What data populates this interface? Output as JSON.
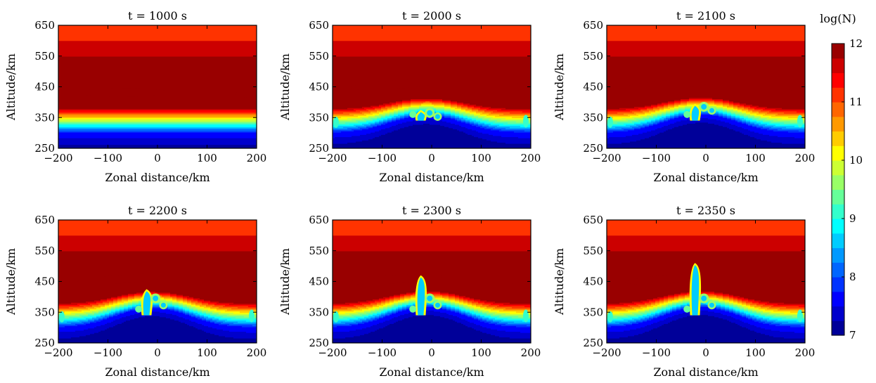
{
  "colorbar": {
    "label": "log(N)",
    "min": 7,
    "max": 12,
    "ticks": [
      7,
      8,
      9,
      10,
      11,
      12
    ],
    "colormap": "jet",
    "levels": 20
  },
  "chart_data": [
    {
      "type": "heatmap",
      "title": "t = 1000 s",
      "xlabel": "Zonal distance/km",
      "ylabel": "Altitude/km",
      "xlim": [
        -200,
        200
      ],
      "ylim": [
        250,
        650
      ],
      "xticks": [
        "−200",
        "−100",
        "0",
        "100",
        "200"
      ],
      "yticks": [
        "250",
        "350",
        "450",
        "550",
        "650"
      ],
      "bump_height_km": 0,
      "plume_top_km": 0
    },
    {
      "type": "heatmap",
      "title": "t = 2000 s",
      "xlabel": "Zonal distance/km",
      "ylabel": "Altitude/km",
      "xlim": [
        -200,
        200
      ],
      "ylim": [
        250,
        650
      ],
      "xticks": [
        "−200",
        "−100",
        "0",
        "100",
        "200"
      ],
      "yticks": [
        "250",
        "350",
        "450",
        "550",
        "650"
      ],
      "bump_height_km": 55,
      "plume_top_km": 375
    },
    {
      "type": "heatmap",
      "title": "t = 2100 s",
      "xlabel": "Zonal distance/km",
      "ylabel": "Altitude/km",
      "xlim": [
        -200,
        200
      ],
      "ylim": [
        250,
        650
      ],
      "xticks": [
        "−200",
        "−100",
        "0",
        "100",
        "200"
      ],
      "yticks": [
        "250",
        "350",
        "450",
        "550",
        "650"
      ],
      "bump_height_km": 60,
      "plume_top_km": 395
    },
    {
      "type": "heatmap",
      "title": "t = 2200 s",
      "xlabel": "Zonal distance/km",
      "ylabel": "Altitude/km",
      "xlim": [
        -200,
        200
      ],
      "ylim": [
        250,
        650
      ],
      "xticks": [
        "−200",
        "−100",
        "0",
        "100",
        "200"
      ],
      "yticks": [
        "250",
        "350",
        "450",
        "550",
        "650"
      ],
      "bump_height_km": 65,
      "plume_top_km": 425
    },
    {
      "type": "heatmap",
      "title": "t = 2300 s",
      "xlabel": "Zonal distance/km",
      "ylabel": "Altitude/km",
      "xlim": [
        -200,
        200
      ],
      "ylim": [
        250,
        650
      ],
      "xticks": [
        "−200",
        "−100",
        "0",
        "100",
        "200"
      ],
      "yticks": [
        "250",
        "350",
        "450",
        "550",
        "650"
      ],
      "bump_height_km": 70,
      "plume_top_km": 470
    },
    {
      "type": "heatmap",
      "title": "t = 2350 s",
      "xlabel": "Zonal distance/km",
      "ylabel": "Altitude/km",
      "xlim": [
        -200,
        200
      ],
      "ylim": [
        250,
        650
      ],
      "xticks": [
        "−200",
        "−100",
        "0",
        "100",
        "200"
      ],
      "yticks": [
        "250",
        "350",
        "450",
        "550",
        "650"
      ],
      "bump_height_km": 70,
      "plume_top_km": 510
    }
  ]
}
